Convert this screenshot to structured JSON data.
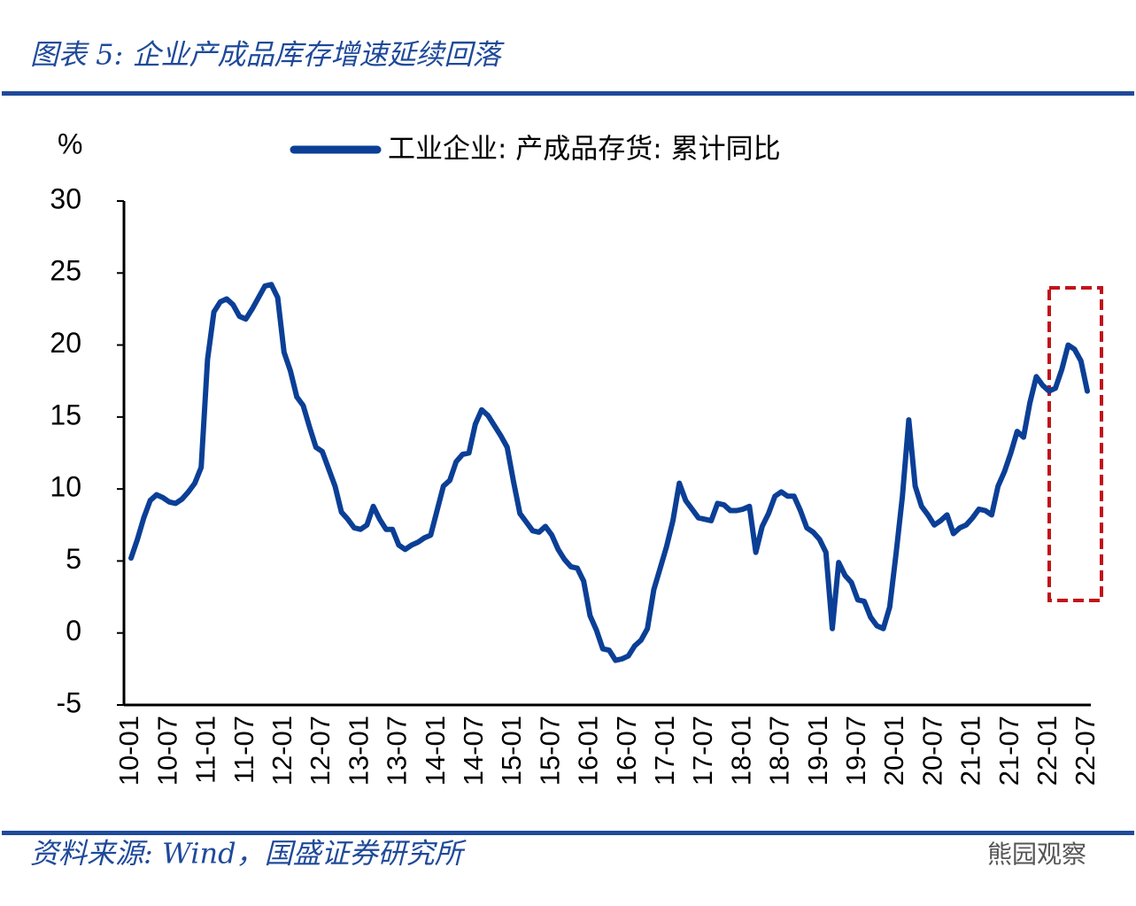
{
  "chart_data": {
    "type": "line",
    "title": "图表 5:  企业产成品库存增速延续回落",
    "y_label": "%",
    "categories": [
      "10-01",
      null,
      null,
      null,
      null,
      null,
      "10-07",
      null,
      null,
      null,
      null,
      null,
      "11-01",
      null,
      null,
      null,
      null,
      null,
      "11-07",
      null,
      null,
      null,
      null,
      null,
      "12-01",
      null,
      null,
      null,
      null,
      null,
      "12-07",
      null,
      null,
      null,
      null,
      null,
      "13-01",
      null,
      null,
      null,
      null,
      null,
      "13-07",
      null,
      null,
      null,
      null,
      null,
      "14-01",
      null,
      null,
      null,
      null,
      null,
      "14-07",
      null,
      null,
      null,
      null,
      null,
      "15-01",
      null,
      null,
      null,
      null,
      null,
      "15-07",
      null,
      null,
      null,
      null,
      null,
      "16-01",
      null,
      null,
      null,
      null,
      null,
      "16-07",
      null,
      null,
      null,
      null,
      null,
      "17-01",
      null,
      null,
      null,
      null,
      null,
      "17-07",
      null,
      null,
      null,
      null,
      null,
      "18-01",
      null,
      null,
      null,
      null,
      null,
      "18-07",
      null,
      null,
      null,
      null,
      null,
      "19-01",
      null,
      null,
      null,
      null,
      null,
      "19-07",
      null,
      null,
      null,
      null,
      null,
      "20-01",
      null,
      null,
      null,
      null,
      null,
      "20-07",
      null,
      null,
      null,
      null,
      null,
      "21-01",
      null,
      null,
      null,
      null,
      null,
      "21-07",
      null,
      null,
      null,
      null,
      null,
      "22-01",
      null,
      null,
      null,
      null,
      null,
      "22-07"
    ],
    "series": [
      {
        "name": "工业企业: 产成品存货: 累计同比",
        "color": "#0b3f96",
        "values": [
          5.2,
          6.5,
          8.0,
          9.2,
          9.6,
          9.4,
          9.1,
          9.0,
          9.3,
          9.8,
          10.4,
          11.5,
          19.0,
          22.3,
          23.0,
          23.2,
          22.8,
          22.0,
          21.8,
          22.5,
          23.3,
          24.1,
          24.2,
          23.3,
          19.5,
          18.2,
          16.4,
          15.8,
          14.3,
          12.9,
          12.6,
          11.4,
          10.2,
          8.4,
          7.9,
          7.3,
          7.2,
          7.5,
          8.8,
          7.9,
          7.2,
          7.2,
          6.1,
          5.8,
          6.1,
          6.3,
          6.6,
          6.8,
          8.5,
          10.2,
          10.6,
          11.9,
          12.4,
          12.5,
          14.5,
          15.5,
          15.1,
          14.4,
          13.7,
          12.9,
          10.5,
          8.3,
          7.7,
          7.1,
          7.0,
          7.4,
          6.8,
          5.8,
          5.1,
          4.6,
          4.5,
          3.6,
          1.2,
          0.2,
          -1.1,
          -1.2,
          -1.9,
          -1.8,
          -1.6,
          -0.9,
          -0.5,
          0.3,
          3.0,
          4.5,
          6.0,
          7.8,
          10.4,
          9.2,
          8.6,
          8.0,
          7.9,
          7.8,
          9.0,
          8.9,
          8.5,
          8.5,
          8.6,
          8.8,
          5.6,
          7.4,
          8.3,
          9.5,
          9.8,
          9.5,
          9.5,
          8.5,
          7.3,
          7.0,
          6.5,
          5.6,
          0.3,
          4.9,
          4.0,
          3.5,
          2.3,
          2.2,
          1.1,
          0.5,
          0.3,
          1.8,
          5.5,
          9.5,
          14.8,
          10.2,
          8.8,
          8.2,
          7.5,
          7.8,
          8.2,
          6.9,
          7.3,
          7.5,
          8.0,
          8.6,
          8.5,
          8.2,
          10.2,
          11.2,
          12.5,
          14.0,
          13.6,
          16.0,
          17.8,
          17.2,
          16.8,
          17.0,
          18.3,
          20.0,
          19.7,
          18.9,
          16.8
        ]
      }
    ],
    "ylim": [
      -5,
      30
    ],
    "yticks": [
      -5,
      0,
      5,
      10,
      15,
      20,
      25,
      30
    ],
    "grid": false
  },
  "source": "资料来源:  Wind，国盛证券研究所",
  "watermark": "熊园观察"
}
